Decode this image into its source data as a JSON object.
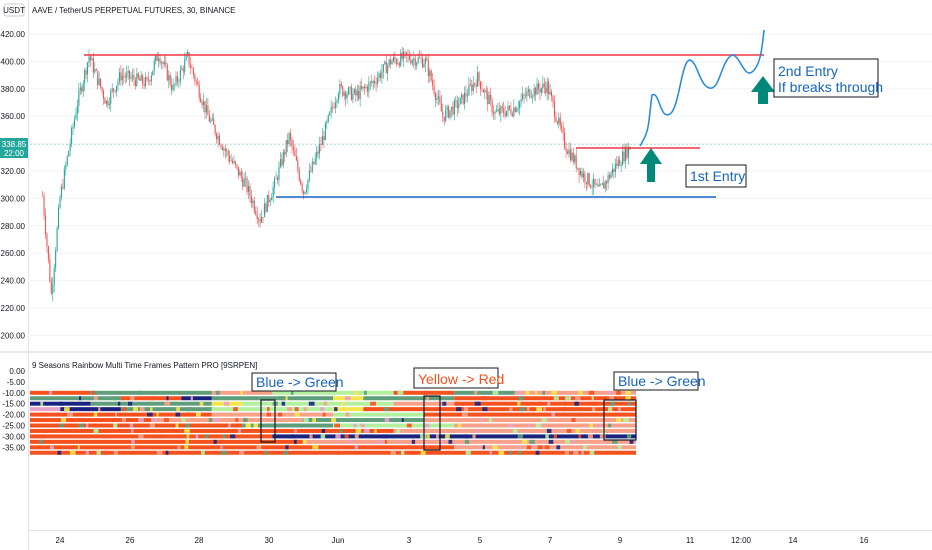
{
  "header": {
    "currency": "USDT",
    "symbol_title": "AAVE / TetherUS PERPETUAL FUTURES, 30, BINANCE"
  },
  "price_panel": {
    "last_price": "338.85",
    "countdown": "22:00",
    "y_ticks": [
      "420.00",
      "400.00",
      "380.00",
      "360.00",
      "340.00",
      "320.00",
      "300.00",
      "280.00",
      "260.00",
      "240.00",
      "220.00",
      "200.00"
    ]
  },
  "indicator": {
    "title": "9 Seasons Rainbow Multi Time Frames Pattern PRO [9SRPEN]",
    "y_ticks": [
      "0.00",
      "-5.00",
      "-10.00",
      "-15.00",
      "-20.00",
      "-25.00",
      "-30.00",
      "-35.00"
    ],
    "stripe_values": [
      -10,
      -12.5,
      -15,
      -17.5,
      -20,
      -22.5,
      -25,
      -27.5,
      -30,
      -32.5,
      -35,
      -37.5
    ],
    "colors": {
      "orange": "#f4511e",
      "salmon": "#f7a08a",
      "green": "#5e9e7b",
      "lightgreen": "#b2f0a0",
      "yellow": "#f5e54a",
      "navy": "#1a237e",
      "pink": "#e7a3c8"
    },
    "box_labels": [
      "Blue -> Green",
      "Yellow -> Red",
      "Blue -> Green"
    ]
  },
  "x_ticks": [
    "24",
    "26",
    "28",
    "30",
    "Jun",
    "3",
    "5",
    "7",
    "9",
    "11",
    "12:00",
    "14",
    "16"
  ],
  "annotations": {
    "first_entry": "1st Entry",
    "second_entry_line1": "2nd Entry",
    "second_entry_line2": "If breaks through"
  },
  "chart_data": [
    {
      "type": "candlestick",
      "title": "AAVE / TetherUS PERPETUAL FUTURES, 30, BINANCE",
      "y_range": [
        195,
        432
      ],
      "x_range": [
        "May 23",
        "Jun 17"
      ],
      "last_price": 338.85,
      "approx_close_path": [
        [
          "May 23 12:00",
          302
        ],
        [
          "May 23 18:00",
          230
        ],
        [
          "May 24 00:00",
          300
        ],
        [
          "May 24 12:00",
          370
        ],
        [
          "May 24 20:00",
          404
        ],
        [
          "May 25 08:00",
          370
        ],
        [
          "May 25 18:00",
          390
        ],
        [
          "May 26 12:00",
          384
        ],
        [
          "May 26 20:00",
          406
        ],
        [
          "May 27 06:00",
          380
        ],
        [
          "May 27 16:00",
          403
        ],
        [
          "May 28 06:00",
          360
        ],
        [
          "May 28 18:00",
          335
        ],
        [
          "May 29 08:00",
          310
        ],
        [
          "May 29 18:00",
          285
        ],
        [
          "May 30 04:00",
          310
        ],
        [
          "May 30 14:00",
          345
        ],
        [
          "May 31 00:00",
          305
        ],
        [
          "May 31 12:00",
          340
        ],
        [
          "Jun 01 00:00",
          380
        ],
        [
          "Jun 01 12:00",
          375
        ],
        [
          "Jun 02 00:00",
          385
        ],
        [
          "Jun 02 12:00",
          400
        ],
        [
          "Jun 03 00:00",
          403
        ],
        [
          "Jun 03 12:00",
          400
        ],
        [
          "Jun 04 00:00",
          360
        ],
        [
          "Jun 04 12:00",
          370
        ],
        [
          "Jun 05 00:00",
          388
        ],
        [
          "Jun 05 12:00",
          362
        ],
        [
          "Jun 06 00:00",
          365
        ],
        [
          "Jun 06 12:00",
          378
        ],
        [
          "Jun 07 00:00",
          382
        ],
        [
          "Jun 07 12:00",
          340
        ],
        [
          "Jun 08 00:00",
          318
        ],
        [
          "Jun 08 12:00",
          305
        ],
        [
          "Jun 09 00:00",
          325
        ],
        [
          "Jun 09 10:00",
          338.85
        ]
      ],
      "levels": [
        {
          "name": "resistance",
          "y": 404,
          "color": "#f23645"
        },
        {
          "name": "support",
          "y": 300,
          "color": "#1565c0"
        },
        {
          "name": "breakout line",
          "y": 338,
          "color": "#f23645"
        }
      ]
    },
    {
      "type": "heatmap",
      "title": "9 Seasons Rainbow Multi Time Frames Pattern PRO [9SRPEN]",
      "y_range": [
        -40,
        2
      ],
      "rows": 12,
      "segments": [
        [
          [
            "orange",
            0.1
          ],
          [
            "green",
            0.2
          ],
          [
            "salmon",
            0.1
          ],
          [
            "lightgreen",
            0.2
          ],
          [
            "orange",
            0.1
          ],
          [
            "green",
            0.1
          ],
          [
            "salmon",
            0.2
          ]
        ],
        [
          [
            "green",
            0.15
          ],
          [
            "orange",
            0.1
          ],
          [
            "navy",
            0.05
          ],
          [
            "green",
            0.2
          ],
          [
            "yellow",
            0.05
          ],
          [
            "green",
            0.15
          ],
          [
            "orange",
            0.3
          ]
        ],
        [
          [
            "navy",
            0.1
          ],
          [
            "green",
            0.2
          ],
          [
            "yellow",
            0.05
          ],
          [
            "lightgreen",
            0.25
          ],
          [
            "salmon",
            0.1
          ],
          [
            "orange",
            0.3
          ]
        ],
        [
          [
            "pink",
            0.05
          ],
          [
            "navy",
            0.1
          ],
          [
            "green",
            0.15
          ],
          [
            "lightgreen",
            0.2
          ],
          [
            "yellow",
            0.05
          ],
          [
            "orange",
            0.45
          ]
        ],
        [
          [
            "orange",
            0.3
          ],
          [
            "salmon",
            0.2
          ],
          [
            "lightgreen",
            0.15
          ],
          [
            "orange",
            0.35
          ]
        ],
        [
          [
            "orange",
            0.2
          ],
          [
            "salmon",
            0.25
          ],
          [
            "green",
            0.2
          ],
          [
            "salmon",
            0.35
          ]
        ],
        [
          [
            "orange",
            0.35
          ],
          [
            "green",
            0.15
          ],
          [
            "lightgreen",
            0.2
          ],
          [
            "salmon",
            0.3
          ]
        ],
        [
          [
            "orange",
            0.6
          ],
          [
            "salmon",
            0.4
          ]
        ],
        [
          [
            "orange",
            0.4
          ],
          [
            "navy",
            0.6
          ]
        ],
        [
          [
            "orange",
            0.45
          ],
          [
            "salmon",
            0.55
          ]
        ],
        [
          [
            "orange",
            0.7
          ],
          [
            "salmon",
            0.3
          ]
        ],
        [
          [
            "orange",
            1.0
          ]
        ]
      ]
    }
  ]
}
